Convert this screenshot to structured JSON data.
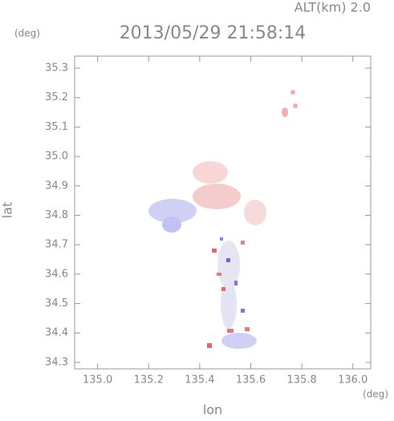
{
  "chart_data": {
    "type": "map",
    "title": "2013/05/29 21:58:14",
    "annotation": "ALT(km) 2.0",
    "x_label": "lon",
    "y_label": "lat",
    "x_unit": "(deg)",
    "y_unit": "(deg)",
    "xlim": [
      134.91,
      136.07
    ],
    "xticks": [
      {
        "value": 135,
        "label": "135.0"
      },
      135.2,
      135.4,
      135.6,
      135.8,
      {
        "value": 136,
        "label": "136.0"
      }
    ],
    "ylim": [
      34.278,
      35.341
    ],
    "yticks": [
      34.3,
      34.4,
      34.5,
      34.6,
      34.7,
      34.8,
      34.9,
      {
        "value": 35,
        "label": "35.0"
      },
      35.1,
      35.2,
      35.3
    ]
  }
}
